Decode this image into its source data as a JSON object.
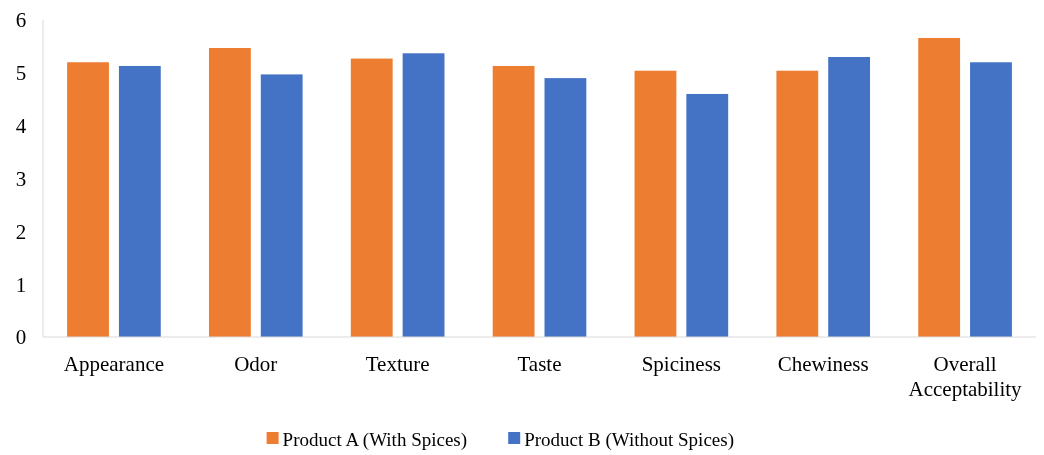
{
  "chart_data": {
    "type": "bar",
    "categories": [
      "Appearance",
      "Odor",
      "Texture",
      "Taste",
      "Spiciness",
      "Chewiness",
      "Overall Acceptability"
    ],
    "series": [
      {
        "name": "Product A (With Spices)",
        "color": "#ed7d31",
        "values": [
          5.2,
          5.47,
          5.27,
          5.13,
          5.04,
          5.04,
          5.66
        ]
      },
      {
        "name": "Product B (Without Spices)",
        "color": "#4472c4",
        "values": [
          5.13,
          4.97,
          5.37,
          4.9,
          4.6,
          5.3,
          5.2
        ]
      }
    ],
    "ylim": [
      0,
      6
    ],
    "yticks": [
      0,
      1,
      2,
      3,
      4,
      5,
      6
    ],
    "grid": false,
    "legend": "bottom"
  }
}
